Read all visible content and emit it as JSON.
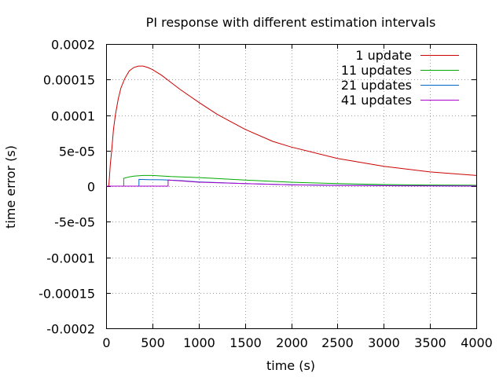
{
  "chart_data": {
    "type": "line",
    "title": "PI response with different estimation intervals",
    "xlabel": "time (s)",
    "ylabel": "time error (s)",
    "xlim": [
      0,
      4000
    ],
    "ylim": [
      -0.0002,
      0.0002
    ],
    "grid": true,
    "legend_position": "top-right",
    "x_ticks": [
      0,
      500,
      1000,
      1500,
      2000,
      2500,
      3000,
      3500,
      4000
    ],
    "x_tick_labels": [
      "0",
      "500",
      "1000",
      "1500",
      "2000",
      "2500",
      "3000",
      "3500",
      "4000"
    ],
    "y_ticks": [
      -0.0002,
      -0.00015,
      -0.0001,
      -5e-05,
      0,
      5e-05,
      0.0001,
      0.00015,
      0.0002
    ],
    "y_tick_labels": [
      "-0.0002",
      "-0.00015",
      "-0.0001",
      "-5e-05",
      "0",
      "5e-05",
      "0.0001",
      "0.00015",
      "0.0002"
    ],
    "series": [
      {
        "name": "1 update",
        "color": "#cc0000",
        "x": [
          0,
          20,
          30,
          45,
          60,
          80,
          100,
          130,
          160,
          200,
          250,
          300,
          350,
          400,
          450,
          500,
          600,
          700,
          800,
          1000,
          1200,
          1500,
          1800,
          2000,
          2500,
          3000,
          3500,
          4000
        ],
        "y": [
          0,
          0,
          0,
          3e-05,
          5e-05,
          8e-05,
          0.0001,
          0.000122,
          0.000138,
          0.000151,
          0.000162,
          0.000167,
          0.000169,
          0.000169,
          0.000167,
          0.000164,
          0.000156,
          0.000146,
          0.000136,
          0.000118,
          0.000101,
          8e-05,
          6.3e-05,
          5.5e-05,
          3.9e-05,
          2.8e-05,
          2e-05,
          1.5e-05
        ]
      },
      {
        "name": "11 updates",
        "color": "#00aa00",
        "x": [
          0,
          190,
          190,
          250,
          300,
          400,
          500,
          700,
          1000,
          1500,
          2000,
          2500,
          3000,
          3500,
          4000
        ],
        "y": [
          0,
          0,
          1.1e-05,
          1.3e-05,
          1.4e-05,
          1.5e-05,
          1.5e-05,
          1.35e-05,
          1.2e-05,
          8.5e-06,
          5.5e-06,
          3.5e-06,
          2.2e-06,
          1.5e-06,
          1.2e-06
        ]
      },
      {
        "name": "21 updates",
        "color": "#0066cc",
        "x": [
          0,
          355,
          355,
          450,
          600,
          800,
          1000,
          1500,
          2000,
          2500,
          3000,
          3500,
          4000
        ],
        "y": [
          0,
          0,
          9.5e-06,
          9.2e-06,
          9e-06,
          7.8e-06,
          6e-06,
          3.5e-06,
          2e-06,
          1.2e-06,
          8e-07,
          5e-07,
          3e-07
        ]
      },
      {
        "name": "41 updates",
        "color": "#aa00cc",
        "x": [
          0,
          670,
          670,
          800,
          1000,
          1500,
          2000,
          2500,
          3000,
          3500,
          4000
        ],
        "y": [
          0,
          0,
          8.5e-06,
          7.5e-06,
          5.5e-06,
          3.5e-06,
          1.8e-06,
          1e-06,
          5e-07,
          2e-07,
          1e-07
        ]
      }
    ]
  }
}
